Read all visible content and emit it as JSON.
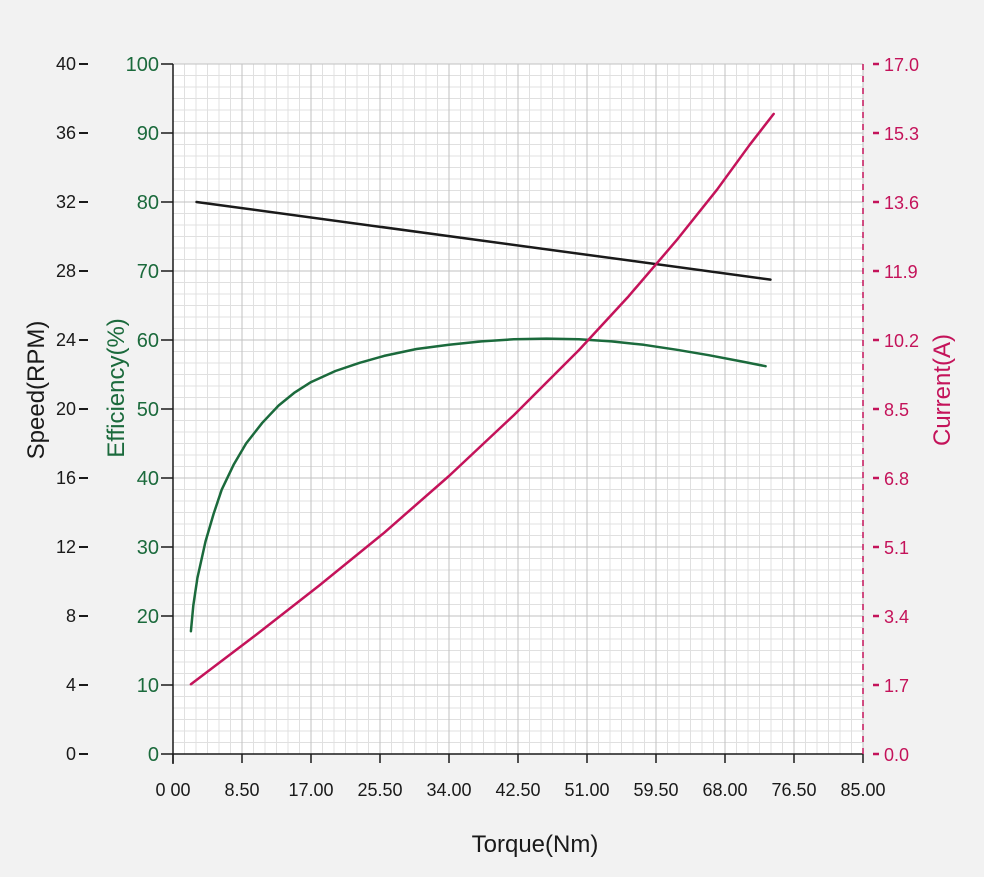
{
  "chart_data": {
    "type": "line",
    "xlabel": "Torque(Nm)",
    "x_ticks": [
      "0 00",
      "8.50",
      "17.00",
      "25.50",
      "34.00",
      "42.50",
      "51.00",
      "59.50",
      "68.00",
      "76.50",
      "85.00"
    ],
    "xlim": [
      0,
      85
    ],
    "axes": {
      "speed": {
        "label": "Speed(RPM)",
        "ticks": [
          "0",
          "4",
          "8",
          "12",
          "16",
          "20",
          "24",
          "28",
          "32",
          "36",
          "40"
        ],
        "range": [
          0,
          40
        ],
        "color": "#1a1a1a"
      },
      "efficiency": {
        "label": "Efficiency(%)",
        "ticks": [
          "0",
          "10",
          "20",
          "30",
          "40",
          "50",
          "60",
          "70",
          "80",
          "90",
          "100"
        ],
        "range": [
          0,
          100
        ],
        "color": "#1b6a3c"
      },
      "current": {
        "label": "Current(A)",
        "ticks": [
          "0.0",
          "1.7",
          "3.4",
          "5.1",
          "6.8",
          "8.5",
          "10.2",
          "11.9",
          "13.6",
          "15.3",
          "17.0"
        ],
        "range": [
          0,
          17
        ],
        "color": "#c4135a"
      }
    },
    "grid": "on",
    "series": [
      {
        "axis": "speed",
        "color": "#1a1a1a",
        "x": [
          2.9,
          73.6
        ],
        "y": [
          32.0,
          27.5
        ]
      },
      {
        "axis": "efficiency",
        "color": "#1b6a3c",
        "x": [
          2.2,
          2.5,
          3.0,
          4.0,
          5.0,
          6.0,
          7.5,
          9.0,
          11.0,
          13.0,
          15.0,
          17.0,
          20.0,
          23.0,
          26.0,
          30.0,
          34.0,
          38.0,
          42.0,
          46.0,
          50.0,
          54.0,
          58.0,
          62.0,
          66.0,
          70.0,
          73.0
        ],
        "y": [
          17.8,
          21.5,
          25.5,
          30.8,
          34.8,
          38.3,
          42.0,
          45.0,
          48.0,
          50.5,
          52.4,
          53.9,
          55.5,
          56.7,
          57.7,
          58.7,
          59.3,
          59.8,
          60.1,
          60.2,
          60.1,
          59.8,
          59.3,
          58.6,
          57.8,
          56.9,
          56.2
        ]
      },
      {
        "axis": "current",
        "color": "#c4135a",
        "x": [
          2.2,
          10.0,
          18.0,
          26.0,
          34.0,
          42.0,
          50.0,
          56.0,
          62.0,
          67.0,
          71.0,
          74.0
        ],
        "y": [
          1.72,
          2.9,
          4.15,
          5.45,
          6.85,
          8.35,
          9.95,
          11.25,
          12.65,
          13.9,
          15.0,
          15.77
        ]
      }
    ]
  }
}
